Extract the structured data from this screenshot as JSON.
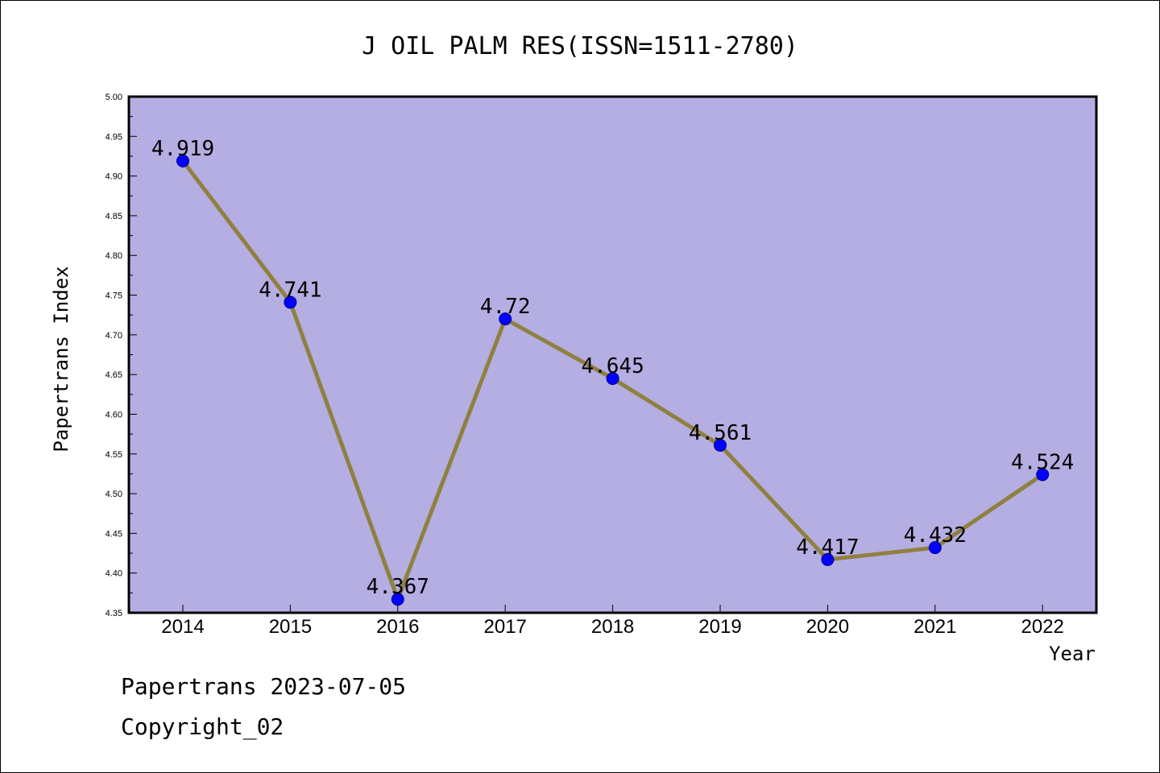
{
  "footer": {
    "line1": "Papertrans 2023-07-05",
    "line2": "Copyright_02"
  },
  "chart_data": {
    "type": "line",
    "title": "J OIL PALM RES(ISSN=1511-2780)",
    "xlabel": "Year",
    "ylabel": "Papertrans Index",
    "categories": [
      "2014",
      "2015",
      "2016",
      "2017",
      "2018",
      "2019",
      "2020",
      "2021",
      "2022"
    ],
    "values": [
      4.919,
      4.741,
      4.367,
      4.72,
      4.645,
      4.561,
      4.417,
      4.432,
      4.524
    ],
    "data_labels": [
      "4.919",
      "4.741",
      "4.367",
      "4.72",
      "4.645",
      "4.561",
      "4.417",
      "4.432",
      "4.524"
    ],
    "ylim": [
      4.35,
      5.0
    ],
    "yticks": [
      "4.35",
      "4.40",
      "4.45",
      "4.50",
      "4.55",
      "4.60",
      "4.65",
      "4.70",
      "4.75",
      "4.80",
      "4.85",
      "4.90",
      "4.95",
      "5.00"
    ],
    "grid": false,
    "colors": {
      "plot_background": "#b4aee2",
      "line": "#8f8040",
      "marker": "#0000ff"
    }
  }
}
